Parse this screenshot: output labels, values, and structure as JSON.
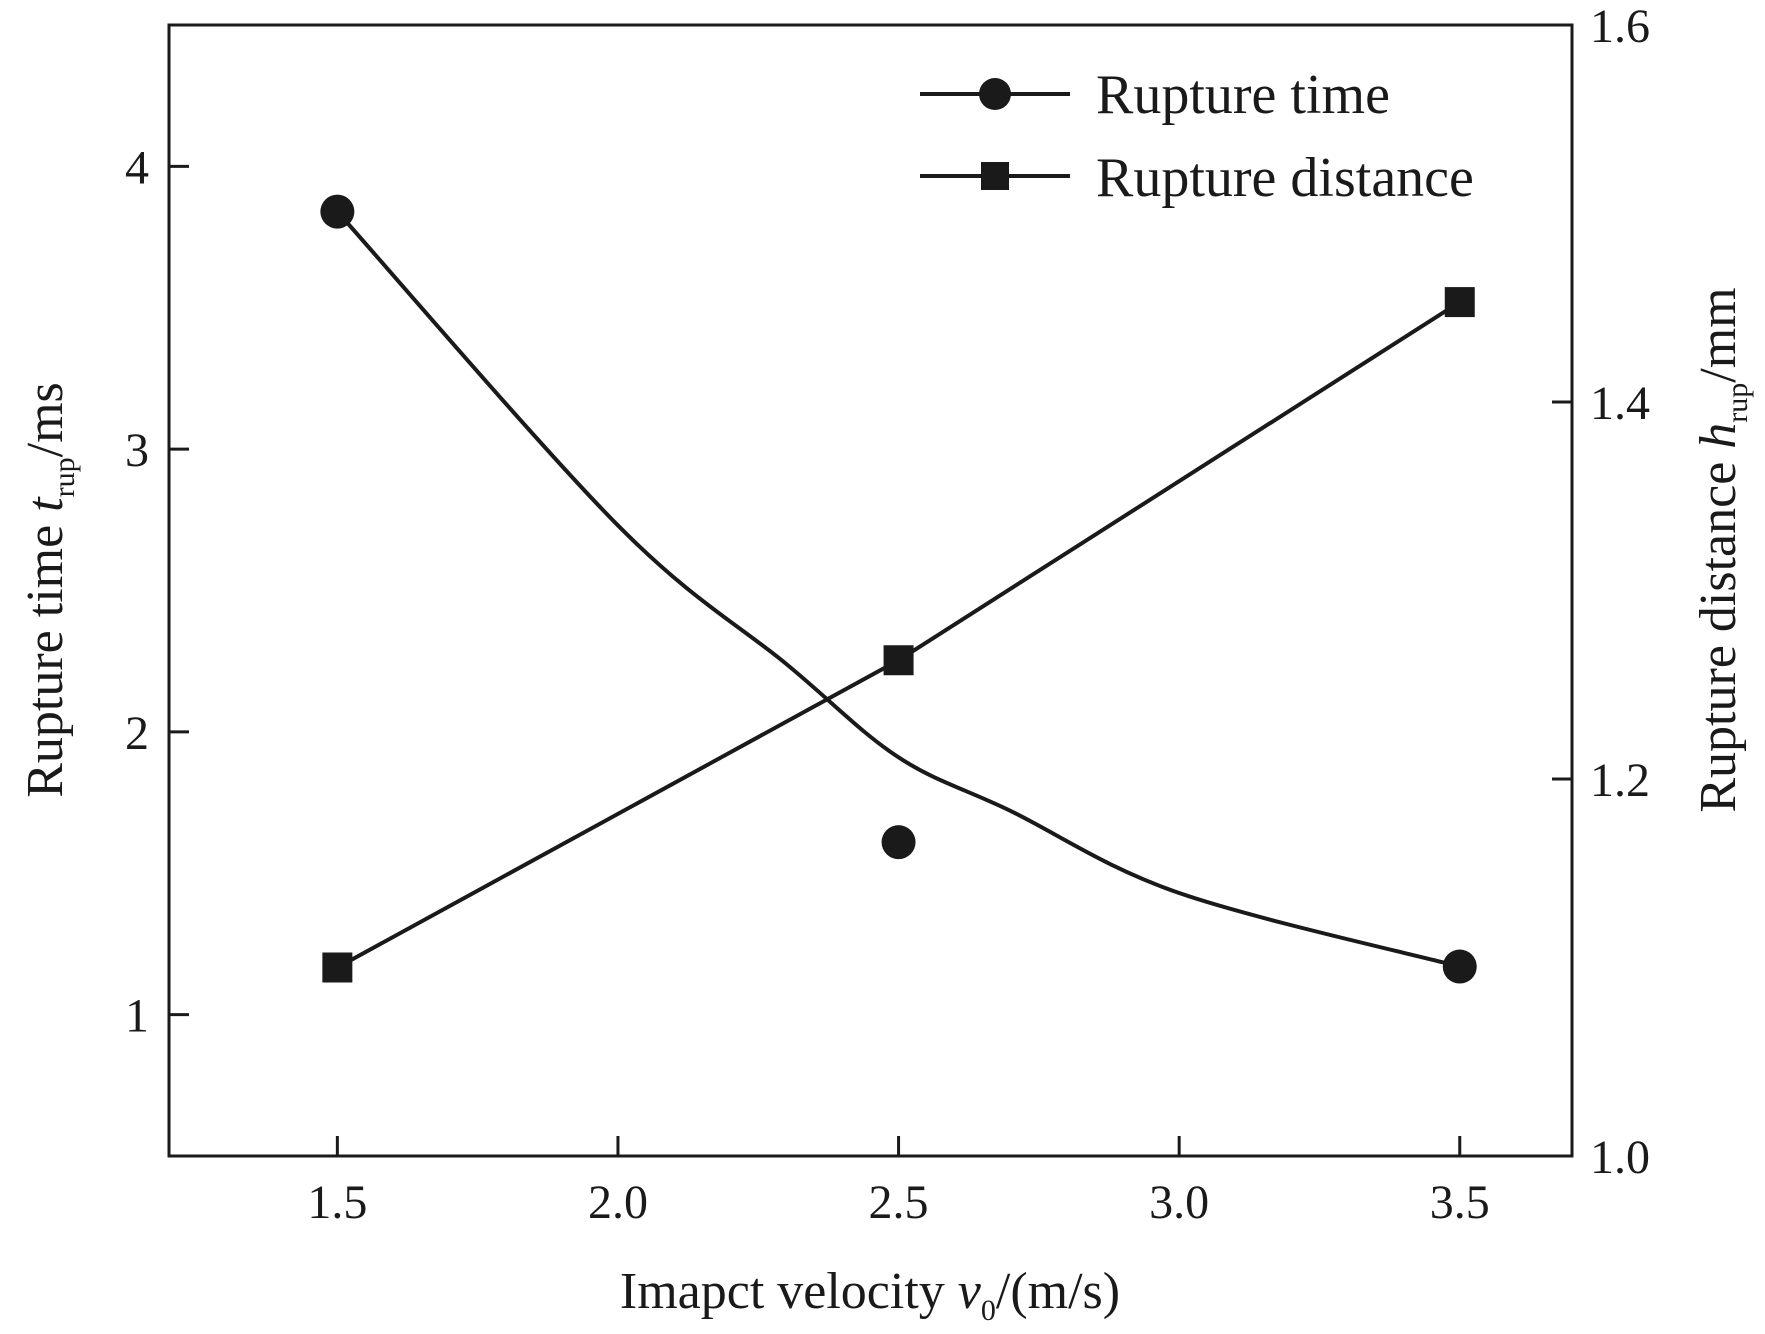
{
  "chart_data": {
    "type": "line",
    "xlabel": {
      "main": "Imapct velocity ",
      "var": "v",
      "sub": "0",
      "unit": "/(m/s)"
    },
    "ylabel_left": {
      "main": "Rupture time ",
      "var": "t",
      "sub": "rup",
      "unit": "/ms"
    },
    "ylabel_right": {
      "main": "Rupture distance ",
      "var": "h",
      "sub": "rup",
      "unit": "/mm"
    },
    "xlim": [
      1.2,
      3.7
    ],
    "ylim_left": [
      0.5,
      4.5
    ],
    "ylim_right": [
      1.0,
      1.6
    ],
    "x_ticks": [
      "1.5",
      "2.0",
      "2.5",
      "3.0",
      "3.5"
    ],
    "y_left_ticks": [
      "1",
      "2",
      "3",
      "4"
    ],
    "y_right_ticks": [
      "1.0",
      "1.2",
      "1.4",
      "1.6"
    ],
    "grid": false,
    "legend_position": "top-right",
    "series": [
      {
        "name": "Rupture time",
        "axis": "left",
        "marker": "circle",
        "x": [
          1.5,
          2.5,
          3.5
        ],
        "values": [
          3.84,
          1.61,
          1.17
        ],
        "fit_curve": {
          "x": [
            1.5,
            2.0,
            2.3,
            2.5,
            2.7,
            3.0,
            3.5
          ],
          "y": [
            3.84,
            2.73,
            2.24,
            1.91,
            1.72,
            1.43,
            1.17
          ]
        }
      },
      {
        "name": "Rupture distance",
        "axis": "right",
        "marker": "square",
        "x": [
          1.5,
          2.5,
          3.5
        ],
        "values": [
          1.1,
          1.263,
          1.453
        ],
        "fit_curve": {
          "x": [
            1.5,
            2.5,
            3.5
          ],
          "y": [
            1.1,
            1.263,
            1.453
          ]
        }
      }
    ]
  }
}
